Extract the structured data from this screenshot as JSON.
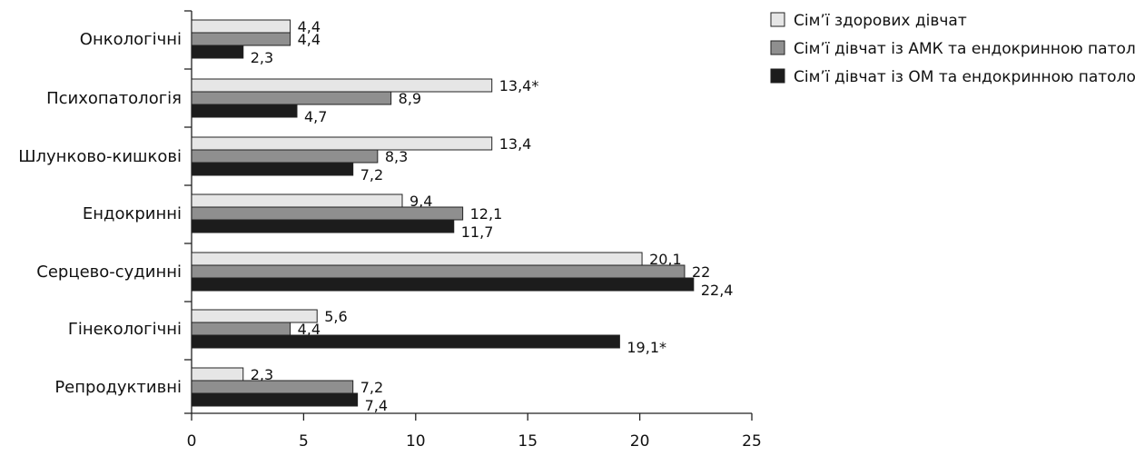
{
  "chart_data": {
    "type": "bar",
    "orientation": "horizontal",
    "title": "",
    "xlabel": "",
    "ylabel": "",
    "xlim": [
      0,
      25
    ],
    "x_ticks": [
      0,
      5,
      10,
      15,
      20,
      25
    ],
    "grid": false,
    "legend_position": "top-right",
    "categories": [
      "Онкологічні",
      "Психопатологія",
      "Шлунково-кишкові",
      "Ендокринні",
      "Серцево-судинні",
      "Гінекологічні",
      "Репродуктивні"
    ],
    "series": [
      {
        "name": "Сім’ї здорових дівчат",
        "color": "#e6e6e6",
        "values": [
          4.4,
          13.4,
          13.4,
          9.4,
          20.1,
          5.6,
          2.3
        ],
        "labels": [
          "4,4",
          "13,4*",
          "13,4",
          "9,4",
          "20,1",
          "5,6",
          "2,3"
        ]
      },
      {
        "name": "Сім’ї дівчат із АМК та ендокринною патологією",
        "color": "#8f8f8f",
        "values": [
          4.4,
          8.9,
          8.3,
          12.1,
          22,
          4.4,
          7.2
        ],
        "labels": [
          "4,4",
          "8,9",
          "8,3",
          "12,1",
          "22",
          "4,4",
          "7,2"
        ]
      },
      {
        "name": "Сім’ї дівчат із ОМ та ендокринною патологією",
        "color": "#1c1c1c",
        "values": [
          2.3,
          4.7,
          7.2,
          11.7,
          22.4,
          19.1,
          7.4
        ],
        "labels": [
          "2,3",
          "4,7",
          "7,2",
          "11,7",
          "22,4",
          "19,1*",
          "7,4"
        ]
      }
    ]
  }
}
